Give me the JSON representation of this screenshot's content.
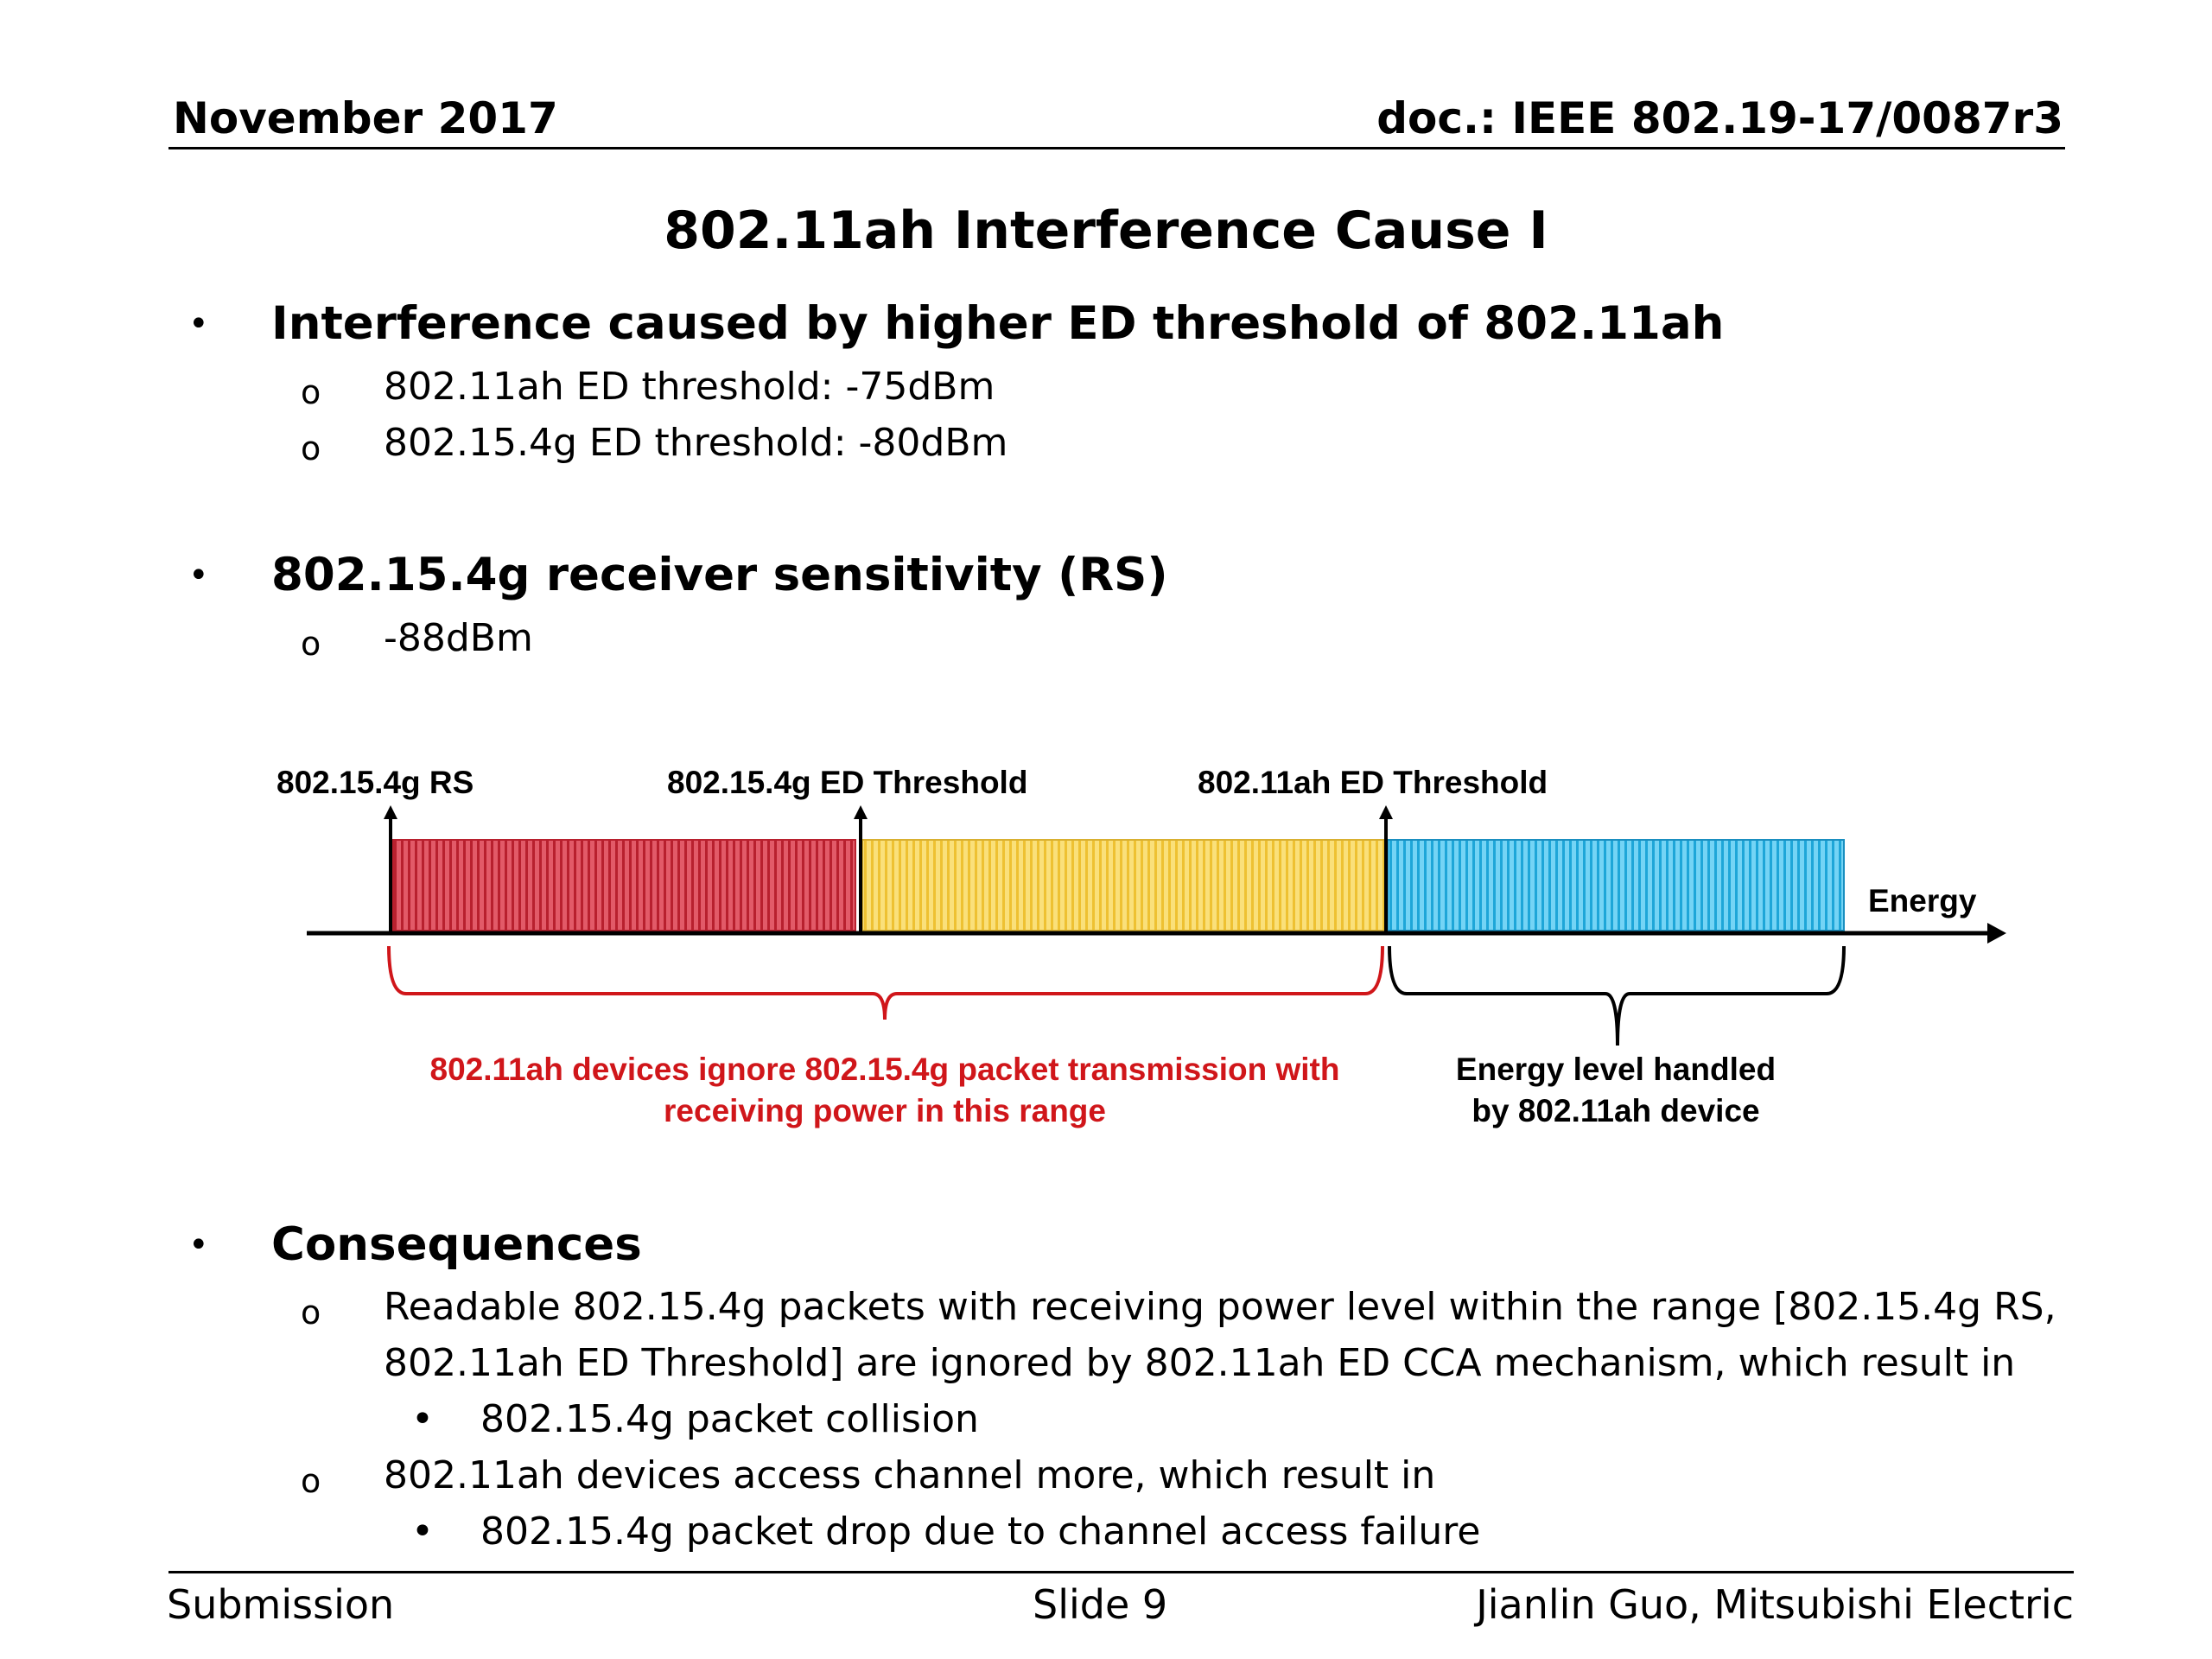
{
  "header": {
    "date": "November 2017",
    "doc_id": "doc.: IEEE 802.19-17/0087r3"
  },
  "slide": {
    "title": "802.11ah Interference Cause I",
    "bullets": [
      {
        "text": "Interference caused by higher ED threshold of 802.11ah",
        "sub": [
          "802.11ah ED threshold: -75dBm",
          "802.15.4g ED threshold: -80dBm"
        ]
      },
      {
        "text": "802.15.4g receiver sensitivity (RS)",
        "sub": [
          "-88dBm"
        ]
      },
      {
        "text": "Consequences",
        "sub": [
          {
            "lines": [
              "Readable 802.15.4g packets with receiving power level within the range [802.15.4g RS,",
              "802.11ah ED Threshold] are ignored by 802.11ah ED CCA mechanism, which result in"
            ],
            "sub": [
              "802.15.4g packet collision"
            ]
          },
          {
            "lines": [
              "802.11ah devices access channel more, which result in"
            ],
            "sub": [
              "802.15.4g packet drop due to channel access failure"
            ]
          }
        ]
      }
    ]
  },
  "diagram": {
    "markers": {
      "rs": "802.15.4g RS",
      "ed_154g": "802.15.4g ED Threshold",
      "ed_11ah": "802.11ah ED Threshold"
    },
    "axis_label": "Energy",
    "ignore_range_label": [
      "802.11ah devices ignore 802.15.4g packet transmission with",
      "receiving power in this range"
    ],
    "handled_range_label": [
      "Energy level handled",
      "by 802.11ah device"
    ],
    "colors": {
      "rs_to_ed154g": "#d84050",
      "ed154g_to_ed11ah": "#f5d24a",
      "above_ed11ah": "#3bbde8",
      "ignore_label": "#d0161a"
    }
  },
  "footer": {
    "left": "Submission",
    "center": "Slide 9",
    "right": "Jianlin Guo, Mitsubishi Electric"
  }
}
